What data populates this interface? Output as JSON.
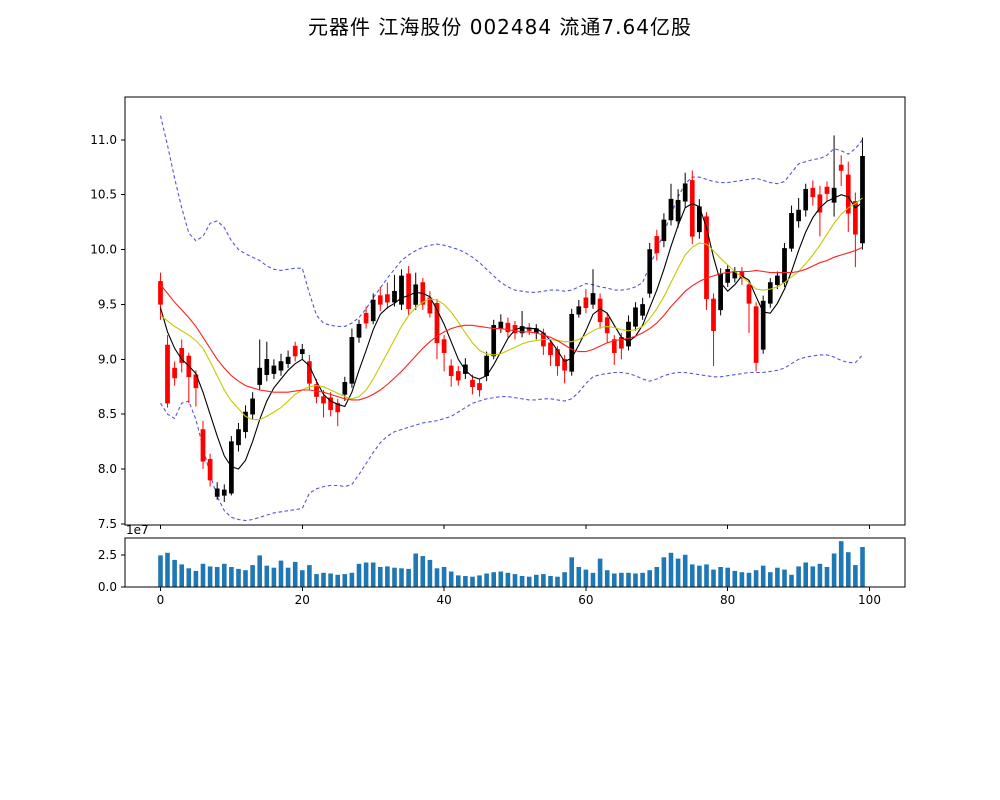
{
  "title": "元器件  江海股份  002484  流通7.64亿股",
  "colors": {
    "background": "#ffffff",
    "frame": "#000000",
    "text": "#000000",
    "candle_up": "#000000",
    "candle_down": "#ff0000",
    "ma_fast": "#000000",
    "ma_mid": "#c8c800",
    "ma_slow": "#ff2020",
    "band": "#5555dd",
    "volume_bar": "#1f77b4"
  },
  "price_axis": {
    "tick_labels": [
      "7.5",
      "8.0",
      "8.5",
      "9.0",
      "9.5",
      "10.0",
      "10.5",
      "11.0"
    ],
    "tick_values": [
      7.5,
      8.0,
      8.5,
      9.0,
      9.5,
      10.0,
      10.5,
      11.0
    ],
    "ylim": [
      7.49,
      11.39
    ]
  },
  "x_axis": {
    "tick_labels": [
      "0",
      "20",
      "40",
      "60",
      "80",
      "100"
    ],
    "tick_values": [
      0,
      20,
      40,
      60,
      80,
      100
    ],
    "xlim": [
      -5,
      105
    ]
  },
  "volume_axis": {
    "tick_labels": [
      "0.0",
      "2.5"
    ],
    "tick_values": [
      0,
      2.5
    ],
    "ylim": [
      0,
      3.8
    ],
    "offset_label": "1e7"
  },
  "chart_data": {
    "type": "candlestick+volume",
    "title": "元器件  江海股份  002484  流通7.64亿股",
    "x_range": [
      0,
      99
    ],
    "legend_position": "none",
    "grid": false,
    "candles_ohlc": [
      [
        9.71,
        9.79,
        9.36,
        9.5
      ],
      [
        9.13,
        9.22,
        8.56,
        8.6
      ],
      [
        8.92,
        8.98,
        8.76,
        8.83
      ],
      [
        9.1,
        9.18,
        8.88,
        8.97
      ],
      [
        9.03,
        9.06,
        8.6,
        8.84
      ],
      [
        8.86,
        8.9,
        8.57,
        8.74
      ],
      [
        8.36,
        8.44,
        8.0,
        8.07
      ],
      [
        8.09,
        8.14,
        7.84,
        7.9
      ],
      [
        7.75,
        7.88,
        7.72,
        7.82
      ],
      [
        7.76,
        7.86,
        7.7,
        7.81
      ],
      [
        7.78,
        8.3,
        7.76,
        8.25
      ],
      [
        8.22,
        8.42,
        8.16,
        8.36
      ],
      [
        8.34,
        8.58,
        8.28,
        8.52
      ],
      [
        8.5,
        8.7,
        8.45,
        8.64
      ],
      [
        8.77,
        9.18,
        8.72,
        8.92
      ],
      [
        8.86,
        9.16,
        8.8,
        9.0
      ],
      [
        8.87,
        9.0,
        8.82,
        8.94
      ],
      [
        8.9,
        9.05,
        8.85,
        8.98
      ],
      [
        8.96,
        9.08,
        8.92,
        9.02
      ],
      [
        9.12,
        9.16,
        8.98,
        9.03
      ],
      [
        9.05,
        9.14,
        9.0,
        9.09
      ],
      [
        8.98,
        9.04,
        8.72,
        8.78
      ],
      [
        8.77,
        8.82,
        8.6,
        8.66
      ],
      [
        8.66,
        8.72,
        8.47,
        8.6
      ],
      [
        8.65,
        8.7,
        8.48,
        8.54
      ],
      [
        8.6,
        8.64,
        8.39,
        8.52
      ],
      [
        8.68,
        8.84,
        8.62,
        8.79
      ],
      [
        8.78,
        9.28,
        8.74,
        9.2
      ],
      [
        9.2,
        9.36,
        9.15,
        9.32
      ],
      [
        9.42,
        9.48,
        9.28,
        9.33
      ],
      [
        9.35,
        9.6,
        9.32,
        9.54
      ],
      [
        9.58,
        9.66,
        9.44,
        9.5
      ],
      [
        9.59,
        9.7,
        9.46,
        9.52
      ],
      [
        9.52,
        9.77,
        9.48,
        9.62
      ],
      [
        9.5,
        9.82,
        9.45,
        9.76
      ],
      [
        9.78,
        9.85,
        9.4,
        9.46
      ],
      [
        9.5,
        9.79,
        9.45,
        9.68
      ],
      [
        9.7,
        9.74,
        9.45,
        9.5
      ],
      [
        9.56,
        9.62,
        9.38,
        9.42
      ],
      [
        9.51,
        9.55,
        9.0,
        9.15
      ],
      [
        9.18,
        9.22,
        8.89,
        9.06
      ],
      [
        8.94,
        9.0,
        8.75,
        8.85
      ],
      [
        8.89,
        8.94,
        8.76,
        8.81
      ],
      [
        8.87,
        9.01,
        8.82,
        8.95
      ],
      [
        8.81,
        8.86,
        8.68,
        8.75
      ],
      [
        8.78,
        8.82,
        8.66,
        8.72
      ],
      [
        8.85,
        9.07,
        8.8,
        9.03
      ],
      [
        9.03,
        9.36,
        9.0,
        9.31
      ],
      [
        9.28,
        9.41,
        9.24,
        9.34
      ],
      [
        9.33,
        9.38,
        9.2,
        9.25
      ],
      [
        9.31,
        9.35,
        9.18,
        9.24
      ],
      [
        9.24,
        9.44,
        9.2,
        9.3
      ],
      [
        9.29,
        9.33,
        9.22,
        9.26
      ],
      [
        9.24,
        9.32,
        9.18,
        9.28
      ],
      [
        9.24,
        9.28,
        9.04,
        9.12
      ],
      [
        9.15,
        9.18,
        8.94,
        9.04
      ],
      [
        9.09,
        9.12,
        8.85,
        8.94
      ],
      [
        9.0,
        9.04,
        8.78,
        8.9
      ],
      [
        8.89,
        9.46,
        8.85,
        9.41
      ],
      [
        9.41,
        9.54,
        9.38,
        9.48
      ],
      [
        9.56,
        9.64,
        9.42,
        9.47
      ],
      [
        9.5,
        9.82,
        9.46,
        9.6
      ],
      [
        9.55,
        9.6,
        9.28,
        9.34
      ],
      [
        9.38,
        9.42,
        9.15,
        9.24
      ],
      [
        9.18,
        9.22,
        8.95,
        9.06
      ],
      [
        9.2,
        9.24,
        9.0,
        9.1
      ],
      [
        9.12,
        9.4,
        9.08,
        9.34
      ],
      [
        9.3,
        9.52,
        9.26,
        9.47
      ],
      [
        9.4,
        9.56,
        9.36,
        9.5
      ],
      [
        9.6,
        10.06,
        9.56,
        10.0
      ],
      [
        10.12,
        10.18,
        9.9,
        9.97
      ],
      [
        10.08,
        10.33,
        10.02,
        10.27
      ],
      [
        10.27,
        10.6,
        10.22,
        10.46
      ],
      [
        10.26,
        10.55,
        10.2,
        10.45
      ],
      [
        10.44,
        10.7,
        10.38,
        10.6
      ],
      [
        10.63,
        10.72,
        10.05,
        10.12
      ],
      [
        10.16,
        10.46,
        10.1,
        10.39
      ],
      [
        10.3,
        10.34,
        9.45,
        9.55
      ],
      [
        9.55,
        9.6,
        8.94,
        9.26
      ],
      [
        9.45,
        9.83,
        9.4,
        9.78
      ],
      [
        9.7,
        9.86,
        9.66,
        9.82
      ],
      [
        9.74,
        9.84,
        9.7,
        9.8
      ],
      [
        9.8,
        9.84,
        9.68,
        9.74
      ],
      [
        9.68,
        9.72,
        9.24,
        9.51
      ],
      [
        9.48,
        9.52,
        8.89,
        8.97
      ],
      [
        9.09,
        9.58,
        9.05,
        9.53
      ],
      [
        9.51,
        9.74,
        9.47,
        9.7
      ],
      [
        9.68,
        9.8,
        9.64,
        9.76
      ],
      [
        9.7,
        10.06,
        9.66,
        10.01
      ],
      [
        10.01,
        10.4,
        9.98,
        10.33
      ],
      [
        10.26,
        10.47,
        10.2,
        10.36
      ],
      [
        10.36,
        10.6,
        10.3,
        10.55
      ],
      [
        10.56,
        10.63,
        10.4,
        10.48
      ],
      [
        10.5,
        10.58,
        10.12,
        10.34
      ],
      [
        10.57,
        10.62,
        10.44,
        10.51
      ],
      [
        10.43,
        11.04,
        10.3,
        10.56
      ],
      [
        10.77,
        10.86,
        10.58,
        10.72
      ],
      [
        10.68,
        10.8,
        10.16,
        10.33
      ],
      [
        10.44,
        10.52,
        9.84,
        10.14
      ],
      [
        10.06,
        11.02,
        10.0,
        10.85
      ]
    ],
    "volume_1e7": [
      2.45,
      2.65,
      2.1,
      1.75,
      1.45,
      1.25,
      1.8,
      1.6,
      1.55,
      1.8,
      1.55,
      1.4,
      1.3,
      1.7,
      2.45,
      1.65,
      1.5,
      2.05,
      1.5,
      1.95,
      1.3,
      1.7,
      1.0,
      1.1,
      1.05,
      0.95,
      1.0,
      1.1,
      1.8,
      1.9,
      1.9,
      1.55,
      1.6,
      1.5,
      1.45,
      1.4,
      2.6,
      2.4,
      2.1,
      1.45,
      1.55,
      1.2,
      0.9,
      0.85,
      0.8,
      0.9,
      1.05,
      1.15,
      1.2,
      1.1,
      1.0,
      0.85,
      0.8,
      0.95,
      1.0,
      0.85,
      0.8,
      1.15,
      2.3,
      1.55,
      1.35,
      1.1,
      2.2,
      1.3,
      1.05,
      1.1,
      1.1,
      1.05,
      1.1,
      1.3,
      1.55,
      2.3,
      2.65,
      2.2,
      2.5,
      1.75,
      1.65,
      1.75,
      1.35,
      1.55,
      1.5,
      1.25,
      1.15,
      1.1,
      1.3,
      1.65,
      1.15,
      1.5,
      1.35,
      0.95,
      1.6,
      1.9,
      1.6,
      1.8,
      1.55,
      2.6,
      3.55,
      2.7,
      1.7,
      3.1
    ],
    "series": {
      "ma_fast": [
        9.47,
        9.25,
        9.1,
        9.0,
        8.94,
        8.87,
        8.7,
        8.5,
        8.3,
        8.12,
        8.02,
        8.0,
        8.08,
        8.25,
        8.45,
        8.62,
        8.74,
        8.82,
        8.9,
        8.96,
        9.0,
        8.94,
        8.8,
        8.68,
        8.62,
        8.59,
        8.57,
        8.7,
        8.9,
        9.08,
        9.27,
        9.41,
        9.47,
        9.51,
        9.56,
        9.58,
        9.61,
        9.6,
        9.57,
        9.45,
        9.32,
        9.16,
        9.0,
        8.9,
        8.84,
        8.82,
        8.85,
        8.95,
        9.07,
        9.19,
        9.27,
        9.29,
        9.28,
        9.28,
        9.24,
        9.17,
        9.08,
        8.98,
        9.01,
        9.13,
        9.26,
        9.41,
        9.46,
        9.42,
        9.31,
        9.2,
        9.16,
        9.21,
        9.31,
        9.47,
        9.63,
        9.82,
        10.03,
        10.22,
        10.38,
        10.42,
        10.39,
        10.2,
        9.93,
        9.7,
        9.62,
        9.68,
        9.76,
        9.72,
        9.57,
        9.43,
        9.42,
        9.51,
        9.64,
        9.8,
        9.99,
        10.16,
        10.29,
        10.38,
        10.44,
        10.47,
        10.5,
        10.48,
        10.38,
        10.43
      ],
      "ma_mid": [
        9.4,
        9.35,
        9.3,
        9.26,
        9.22,
        9.17,
        9.1,
        8.98,
        8.85,
        8.72,
        8.62,
        8.55,
        8.48,
        8.45,
        8.45,
        8.48,
        8.52,
        8.56,
        8.62,
        8.68,
        8.72,
        8.75,
        8.76,
        8.75,
        8.72,
        8.69,
        8.66,
        8.64,
        8.66,
        8.72,
        8.82,
        8.94,
        9.06,
        9.18,
        9.3,
        9.4,
        9.47,
        9.52,
        9.55,
        9.54,
        9.5,
        9.43,
        9.34,
        9.24,
        9.15,
        9.08,
        9.05,
        9.04,
        9.05,
        9.08,
        9.11,
        9.14,
        9.16,
        9.17,
        9.18,
        9.18,
        9.17,
        9.16,
        9.16,
        9.18,
        9.22,
        9.26,
        9.29,
        9.3,
        9.29,
        9.27,
        9.26,
        9.27,
        9.3,
        9.37,
        9.46,
        9.57,
        9.7,
        9.83,
        9.95,
        10.02,
        10.06,
        10.05,
        9.99,
        9.92,
        9.86,
        9.8,
        9.75,
        9.7,
        9.64,
        9.63,
        9.64,
        9.66,
        9.7,
        9.75,
        9.8,
        9.87,
        9.95,
        10.04,
        10.14,
        10.24,
        10.32,
        10.38,
        10.42,
        10.47
      ],
      "ma_slow": [
        9.68,
        9.6,
        9.52,
        9.45,
        9.38,
        9.3,
        9.2,
        9.1,
        9.0,
        8.92,
        8.85,
        8.8,
        8.76,
        8.74,
        8.72,
        8.71,
        8.7,
        8.7,
        8.7,
        8.71,
        8.72,
        8.72,
        8.71,
        8.7,
        8.68,
        8.66,
        8.64,
        8.63,
        8.63,
        8.65,
        8.68,
        8.72,
        8.77,
        8.83,
        8.89,
        8.96,
        9.03,
        9.1,
        9.16,
        9.21,
        9.25,
        9.28,
        9.3,
        9.31,
        9.31,
        9.3,
        9.29,
        9.28,
        9.28,
        9.27,
        9.26,
        9.25,
        9.25,
        9.24,
        9.22,
        9.2,
        9.17,
        9.13,
        9.09,
        9.07,
        9.07,
        9.09,
        9.12,
        9.15,
        9.17,
        9.18,
        9.19,
        9.21,
        9.24,
        9.28,
        9.33,
        9.4,
        9.48,
        9.55,
        9.62,
        9.67,
        9.71,
        9.74,
        9.76,
        9.78,
        9.79,
        9.8,
        9.8,
        9.8,
        9.81,
        9.8,
        9.79,
        9.79,
        9.79,
        9.79,
        9.8,
        9.82,
        9.85,
        9.88,
        9.9,
        9.93,
        9.95,
        9.97,
        9.99,
        10.02
      ],
      "boll_upper": [
        11.22,
        10.95,
        10.65,
        10.38,
        10.15,
        10.08,
        10.12,
        10.24,
        10.26,
        10.2,
        10.08,
        10.0,
        9.96,
        9.93,
        9.9,
        9.85,
        9.82,
        9.81,
        9.82,
        9.83,
        9.83,
        9.6,
        9.4,
        9.33,
        9.31,
        9.3,
        9.3,
        9.33,
        9.38,
        9.46,
        9.56,
        9.65,
        9.74,
        9.82,
        9.9,
        9.95,
        9.99,
        10.02,
        10.04,
        10.05,
        10.04,
        10.02,
        10.0,
        9.97,
        9.93,
        9.88,
        9.82,
        9.76,
        9.7,
        9.66,
        9.63,
        9.62,
        9.61,
        9.61,
        9.62,
        9.63,
        9.63,
        9.62,
        9.63,
        9.66,
        9.69,
        9.68,
        9.66,
        9.65,
        9.63,
        9.63,
        9.64,
        9.66,
        9.7,
        9.85,
        10.0,
        10.15,
        10.32,
        10.48,
        10.6,
        10.66,
        10.66,
        10.64,
        10.62,
        10.61,
        10.61,
        10.62,
        10.63,
        10.64,
        10.65,
        10.63,
        10.61,
        10.6,
        10.62,
        10.7,
        10.78,
        10.8,
        10.82,
        10.83,
        10.86,
        10.92,
        10.9,
        10.87,
        10.92,
        11.0
      ],
      "boll_lower": [
        8.6,
        8.5,
        8.46,
        8.6,
        8.62,
        8.45,
        8.2,
        7.95,
        7.75,
        7.62,
        7.56,
        7.54,
        7.53,
        7.54,
        7.56,
        7.58,
        7.6,
        7.61,
        7.62,
        7.63,
        7.64,
        7.78,
        7.82,
        7.84,
        7.85,
        7.85,
        7.84,
        7.86,
        7.95,
        8.05,
        8.15,
        8.24,
        8.3,
        8.34,
        8.36,
        8.38,
        8.4,
        8.42,
        8.43,
        8.44,
        8.46,
        8.48,
        8.52,
        8.56,
        8.6,
        8.62,
        8.64,
        8.65,
        8.66,
        8.66,
        8.65,
        8.64,
        8.63,
        8.63,
        8.64,
        8.64,
        8.63,
        8.62,
        8.64,
        8.7,
        8.78,
        8.84,
        8.86,
        8.87,
        8.88,
        8.88,
        8.87,
        8.85,
        8.82,
        8.8,
        8.82,
        8.85,
        8.87,
        8.88,
        8.88,
        8.87,
        8.86,
        8.85,
        8.84,
        8.84,
        8.85,
        8.86,
        8.87,
        8.88,
        8.88,
        8.88,
        8.89,
        8.9,
        8.92,
        8.96,
        9.0,
        9.02,
        9.03,
        9.04,
        9.04,
        9.02,
        8.99,
        8.97,
        8.97,
        9.04
      ]
    }
  }
}
